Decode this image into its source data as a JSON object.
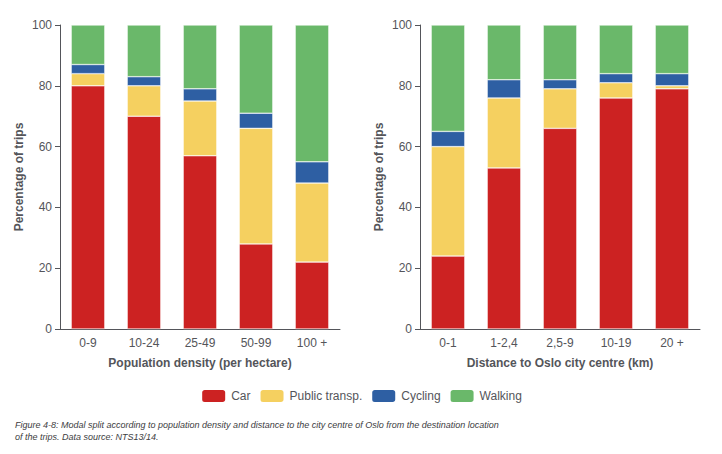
{
  "chart_data": [
    {
      "type": "bar",
      "stacked": true,
      "grid": false,
      "legend": "bottom",
      "categories": [
        "0-9",
        "10-24",
        "25-49",
        "50-99",
        "100 +"
      ],
      "xlabel": "Population density (per hectare)",
      "ylabel": "Percentage of trips",
      "ylim": [
        0,
        100
      ],
      "yticks": [
        0,
        20,
        40,
        60,
        80,
        100
      ],
      "series": [
        {
          "name": "Car",
          "color": "#cc2222",
          "values": [
            80,
            70,
            57,
            28,
            22
          ]
        },
        {
          "name": "Public transp.",
          "color": "#f5d060",
          "values": [
            4,
            10,
            18,
            38,
            26
          ]
        },
        {
          "name": "Cycling",
          "color": "#2e5fa3",
          "values": [
            3,
            3,
            4,
            5,
            7
          ]
        },
        {
          "name": "Walking",
          "color": "#6ab86a",
          "values": [
            13,
            17,
            21,
            29,
            45
          ]
        }
      ]
    },
    {
      "type": "bar",
      "stacked": true,
      "grid": false,
      "legend": "bottom",
      "categories": [
        "0-1",
        "1-2,4",
        "2,5-9",
        "10-19",
        "20 +"
      ],
      "xlabel": "Distance to Oslo city centre (km)",
      "ylabel": "Percentage of trips",
      "ylim": [
        0,
        100
      ],
      "yticks": [
        0,
        20,
        40,
        60,
        80,
        100
      ],
      "series": [
        {
          "name": "Car",
          "color": "#cc2222",
          "values": [
            24,
            53,
            66,
            76,
            79
          ]
        },
        {
          "name": "Public transp.",
          "color": "#f5d060",
          "values": [
            36,
            23,
            13,
            5,
            1
          ]
        },
        {
          "name": "Cycling",
          "color": "#2e5fa3",
          "values": [
            5,
            6,
            3,
            3,
            4
          ]
        },
        {
          "name": "Walking",
          "color": "#6ab86a",
          "values": [
            35,
            18,
            18,
            16,
            16
          ]
        }
      ]
    }
  ],
  "caption": "Figure 4-8: Modal split according to population density and distance to the city centre of Oslo from the destination location\nof the trips. Data source: NTS13/14."
}
